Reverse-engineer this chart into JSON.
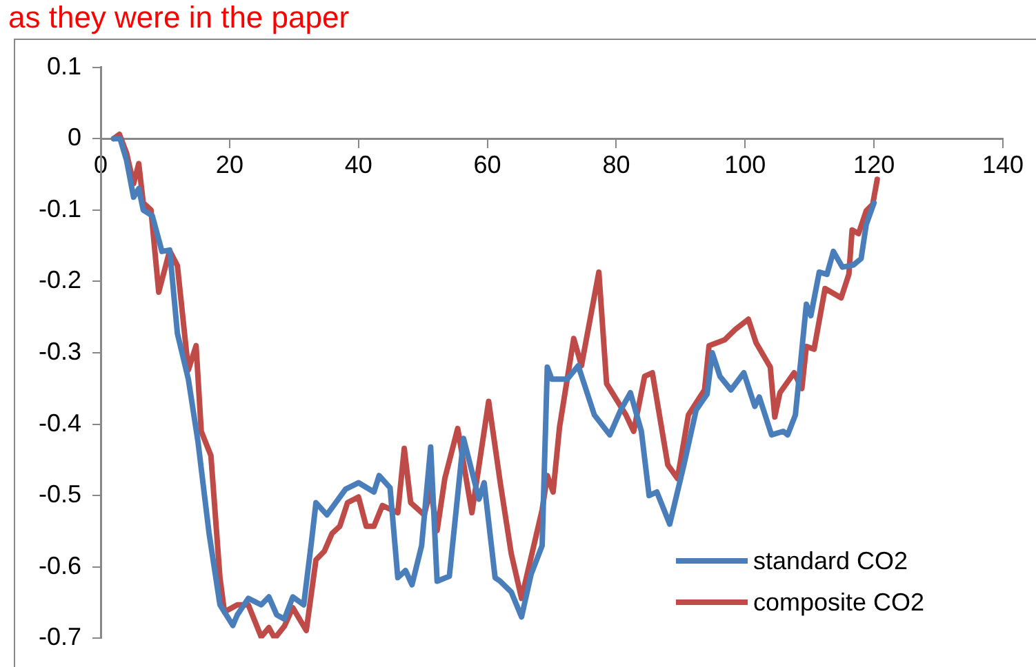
{
  "chart_data": {
    "type": "line",
    "title": "as they were in the paper",
    "xlim": [
      0,
      140
    ],
    "xticks": [
      0,
      20,
      40,
      60,
      80,
      100,
      120,
      140
    ],
    "ylim": [
      -0.7,
      0.1
    ],
    "yticks": [
      -0.7,
      -0.6,
      -0.5,
      -0.4,
      -0.3,
      -0.2,
      -0.1,
      0,
      0.1
    ],
    "grid": false,
    "legend": "bottom right",
    "marker": "none",
    "line_style": "solid",
    "series": [
      {
        "name": "standard CO2",
        "color": "#4a7ebb",
        "x": [
          2,
          3,
          4,
          5.1,
          5.9,
          6.6,
          8,
          9.5,
          10.7,
          11.9,
          13.6,
          15.1,
          16.8,
          18.5,
          20.5,
          21.2,
          22.9,
          24.9,
          26.1,
          27.3,
          28.5,
          29.8,
          31.5,
          32.7,
          33.4,
          35.1,
          38,
          40,
          42.4,
          43.2,
          44.9,
          46.1,
          47.3,
          48.3,
          49.8,
          51.2,
          52.2,
          54.1,
          56.3,
          58.7,
          59.5,
          61.2,
          62,
          63.7,
          65.3,
          66.8,
          68.5,
          69.3,
          70,
          72.4,
          74.1,
          76.6,
          79,
          80.7,
          82.2,
          83.9,
          85.1,
          86.3,
          88.3,
          90.5,
          92.4,
          94.1,
          94.9,
          96.1,
          97.8,
          99.8,
          101.5,
          102.2,
          104.1,
          105.9,
          106.6,
          107.8,
          109.5,
          110.2,
          111.5,
          112.7,
          113.7,
          115.1,
          116.8,
          118,
          118.8,
          120
        ],
        "values": [
          0,
          0,
          -0.03,
          -0.082,
          -0.07,
          -0.1,
          -0.108,
          -0.158,
          -0.156,
          -0.273,
          -0.337,
          -0.425,
          -0.552,
          -0.653,
          -0.682,
          -0.667,
          -0.644,
          -0.653,
          -0.642,
          -0.667,
          -0.673,
          -0.642,
          -0.653,
          -0.565,
          -0.51,
          -0.527,
          -0.491,
          -0.482,
          -0.495,
          -0.472,
          -0.489,
          -0.615,
          -0.605,
          -0.625,
          -0.57,
          -0.432,
          -0.62,
          -0.613,
          -0.42,
          -0.505,
          -0.482,
          -0.615,
          -0.62,
          -0.635,
          -0.67,
          -0.61,
          -0.57,
          -0.32,
          -0.337,
          -0.337,
          -0.318,
          -0.387,
          -0.415,
          -0.38,
          -0.356,
          -0.41,
          -0.5,
          -0.495,
          -0.54,
          -0.457,
          -0.38,
          -0.358,
          -0.3,
          -0.333,
          -0.352,
          -0.328,
          -0.375,
          -0.362,
          -0.415,
          -0.41,
          -0.415,
          -0.387,
          -0.232,
          -0.248,
          -0.187,
          -0.19,
          -0.158,
          -0.18,
          -0.177,
          -0.168,
          -0.12,
          -0.09
        ]
      },
      {
        "name": "composite CO2",
        "color": "#be4b48",
        "x": [
          2,
          2.9,
          4,
          5.1,
          5.9,
          6.6,
          7.8,
          9,
          10.7,
          11.9,
          13.6,
          14.8,
          15.6,
          17.1,
          18.5,
          19.2,
          21.2,
          22.9,
          24.9,
          26.1,
          27,
          28.5,
          29.8,
          31.9,
          33.4,
          34.7,
          35.9,
          37.1,
          38.3,
          40,
          41.2,
          42.4,
          43.7,
          46.1,
          47.1,
          48.1,
          50.2,
          51.2,
          52.2,
          53.4,
          55.4,
          57.6,
          60.2,
          62,
          63.7,
          65.3,
          68.5,
          69.3,
          70.2,
          71.2,
          73.4,
          74.6,
          77.3,
          78.5,
          81.5,
          82.7,
          84.4,
          85.6,
          88,
          89.5,
          91.2,
          93.7,
          94.4,
          96.8,
          98.5,
          100.5,
          101.7,
          103.9,
          104.6,
          105.4,
          107.6,
          108.8,
          109.5,
          110.7,
          112.4,
          114.9,
          116.1,
          116.6,
          117.6,
          118.8,
          119.8,
          120.5
        ],
        "values": [
          0,
          0.006,
          -0.02,
          -0.063,
          -0.035,
          -0.09,
          -0.1,
          -0.215,
          -0.157,
          -0.178,
          -0.324,
          -0.29,
          -0.41,
          -0.444,
          -0.615,
          -0.663,
          -0.653,
          -0.653,
          -0.698,
          -0.685,
          -0.7,
          -0.683,
          -0.657,
          -0.689,
          -0.59,
          -0.578,
          -0.553,
          -0.543,
          -0.51,
          -0.502,
          -0.543,
          -0.543,
          -0.514,
          -0.524,
          -0.434,
          -0.51,
          -0.527,
          -0.491,
          -0.549,
          -0.476,
          -0.406,
          -0.524,
          -0.368,
          -0.482,
          -0.581,
          -0.644,
          -0.52,
          -0.472,
          -0.495,
          -0.404,
          -0.28,
          -0.318,
          -0.187,
          -0.343,
          -0.387,
          -0.41,
          -0.333,
          -0.328,
          -0.457,
          -0.476,
          -0.387,
          -0.352,
          -0.29,
          -0.282,
          -0.267,
          -0.253,
          -0.286,
          -0.32,
          -0.39,
          -0.356,
          -0.328,
          -0.35,
          -0.291,
          -0.295,
          -0.21,
          -0.223,
          -0.19,
          -0.128,
          -0.133,
          -0.101,
          -0.092,
          -0.057
        ]
      }
    ]
  }
}
